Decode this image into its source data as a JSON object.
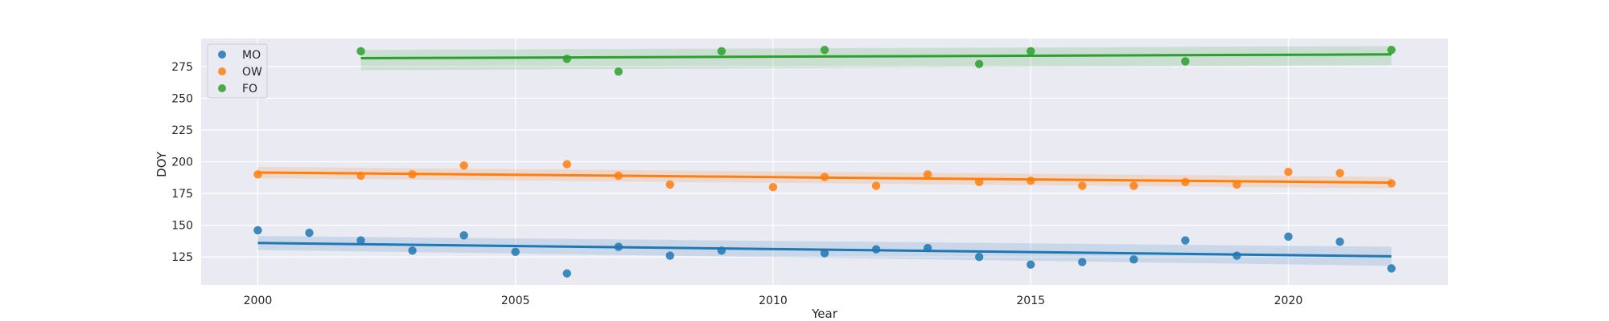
{
  "chart_data": {
    "type": "scatter",
    "title": "",
    "xlabel": "Year",
    "ylabel": "DOY",
    "xlim": [
      1998.9,
      2023.1
    ],
    "ylim": [
      103,
      297
    ],
    "xticks": [
      2000,
      2005,
      2010,
      2015,
      2020
    ],
    "yticks": [
      125,
      150,
      175,
      200,
      225,
      250,
      275
    ],
    "grid": true,
    "legend_position": "top-left",
    "regression_lines": true,
    "confidence_bands": true,
    "series": [
      {
        "name": "MO",
        "color": "#1f77b4",
        "x": [
          2000,
          2001,
          2002,
          2003,
          2004,
          2005,
          2006,
          2007,
          2008,
          2009,
          2011,
          2012,
          2013,
          2014,
          2015,
          2016,
          2017,
          2018,
          2019,
          2020,
          2021,
          2022
        ],
        "y": [
          146,
          144,
          138,
          130,
          142,
          129,
          112,
          133,
          126,
          130,
          128,
          131,
          132,
          125,
          119,
          121,
          123,
          138,
          126,
          141,
          137,
          116
        ],
        "fit": {
          "x": [
            2000,
            2022
          ],
          "y": [
            136,
            125.5
          ]
        },
        "band": {
          "upper": [
            141.5,
            133
          ],
          "lower": [
            130.5,
            118
          ]
        }
      },
      {
        "name": "OW",
        "color": "#ff7f0e",
        "x": [
          2000,
          2002,
          2003,
          2004,
          2006,
          2007,
          2008,
          2010,
          2011,
          2012,
          2013,
          2014,
          2015,
          2016,
          2017,
          2018,
          2019,
          2020,
          2021,
          2022
        ],
        "y": [
          190,
          189,
          190,
          197,
          198,
          189,
          182,
          180,
          188,
          181,
          190,
          184,
          185,
          181,
          181,
          184,
          182,
          192,
          191,
          183
        ],
        "fit": {
          "x": [
            2000,
            2022
          ],
          "y": [
            191.5,
            183.5
          ]
        },
        "band": {
          "upper": [
            196,
            188
          ],
          "lower": [
            187,
            179
          ]
        }
      },
      {
        "name": "FO",
        "color": "#2ca02c",
        "x": [
          2002,
          2006,
          2007,
          2009,
          2011,
          2014,
          2015,
          2018,
          2022
        ],
        "y": [
          287,
          281,
          271,
          287,
          288,
          277,
          287,
          279,
          288
        ],
        "fit": {
          "x": [
            2002,
            2022
          ],
          "y": [
            281.5,
            284.5
          ]
        },
        "band": {
          "upper": [
            288,
            291
          ],
          "lower": [
            272,
            276
          ]
        }
      }
    ]
  }
}
